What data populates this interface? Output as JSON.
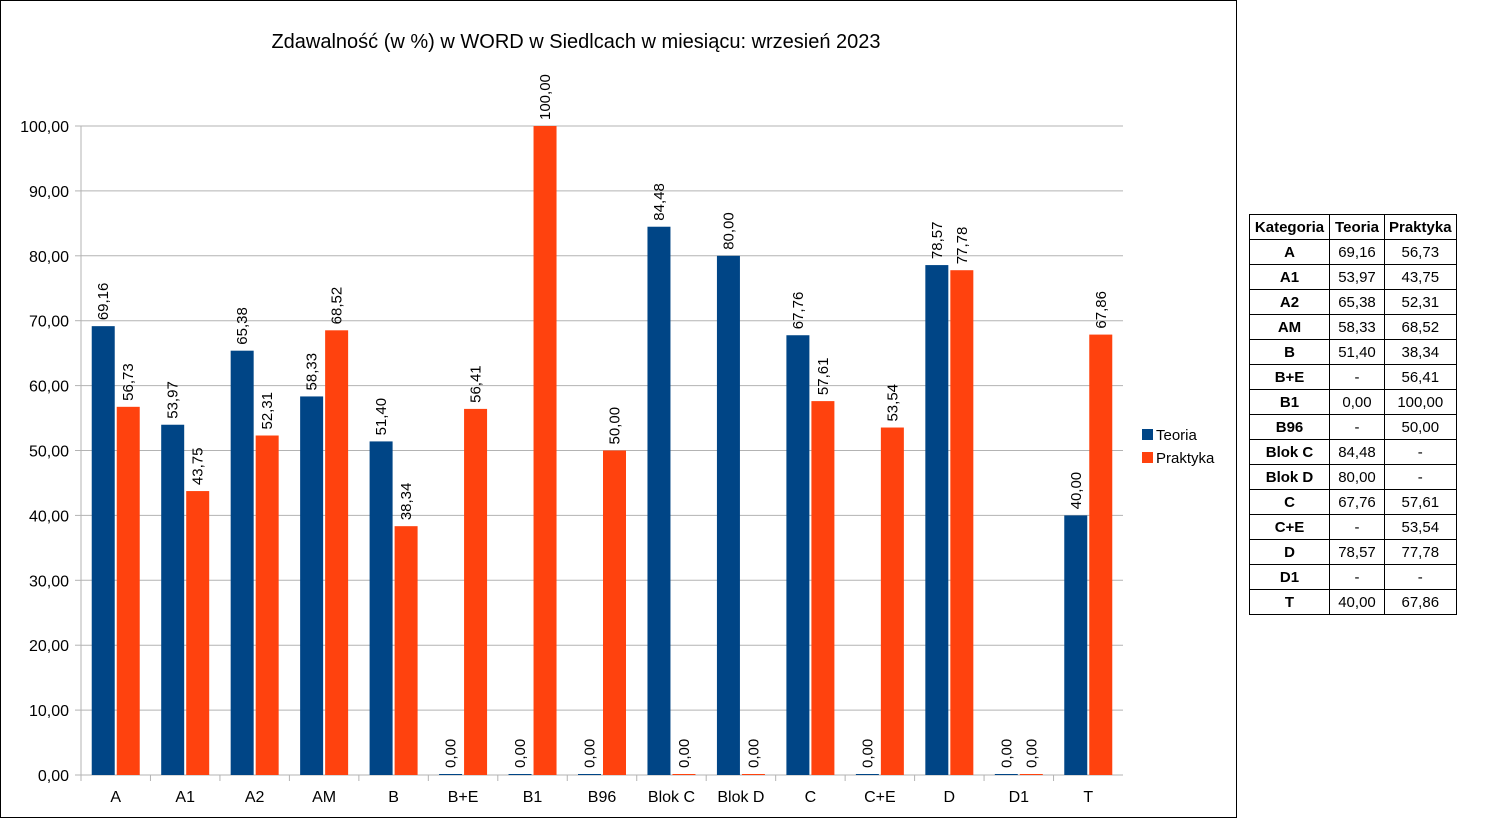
{
  "chart_data": {
    "type": "bar",
    "title": "Zdawalność (w %) w WORD w Siedlcach w miesiącu: wrzesień 2023",
    "categories": [
      "A",
      "A1",
      "A2",
      "AM",
      "B",
      "B+E",
      "B1",
      "B96",
      "Blok C",
      "Blok D",
      "C",
      "C+E",
      "D",
      "D1",
      "T"
    ],
    "series": [
      {
        "name": "Teoria",
        "color": "#004586",
        "values": [
          69.16,
          53.97,
          65.38,
          58.33,
          51.4,
          0.0,
          0.0,
          0.0,
          84.48,
          80.0,
          67.76,
          0.0,
          78.57,
          0.0,
          40.0
        ],
        "labels": [
          "69,16",
          "53,97",
          "65,38",
          "58,33",
          "51,40",
          "0,00",
          "0,00",
          "0,00",
          "84,48",
          "80,00",
          "67,76",
          "0,00",
          "78,57",
          "0,00",
          "40,00"
        ]
      },
      {
        "name": "Praktyka",
        "color": "#ff420e",
        "values": [
          56.73,
          43.75,
          52.31,
          68.52,
          38.34,
          56.41,
          100.0,
          50.0,
          0.0,
          0.0,
          57.61,
          53.54,
          77.78,
          0.0,
          67.86
        ],
        "labels": [
          "56,73",
          "43,75",
          "52,31",
          "68,52",
          "38,34",
          "56,41",
          "100,00",
          "50,00",
          "0,00",
          "0,00",
          "57,61",
          "53,54",
          "77,78",
          "0,00",
          "67,86"
        ]
      }
    ],
    "ylim": [
      0,
      100
    ],
    "yticks": [
      "0,00",
      "10,00",
      "20,00",
      "30,00",
      "40,00",
      "50,00",
      "60,00",
      "70,00",
      "80,00",
      "90,00",
      "100,00"
    ],
    "grid": true,
    "legend": "right",
    "xlabel": "",
    "ylabel": ""
  },
  "table": {
    "headers": [
      "Kategoria",
      "Teoria",
      "Praktyka"
    ],
    "rows": [
      [
        "A",
        "69,16",
        "56,73"
      ],
      [
        "A1",
        "53,97",
        "43,75"
      ],
      [
        "A2",
        "65,38",
        "52,31"
      ],
      [
        "AM",
        "58,33",
        "68,52"
      ],
      [
        "B",
        "51,40",
        "38,34"
      ],
      [
        "B+E",
        "-",
        "56,41"
      ],
      [
        "B1",
        "0,00",
        "100,00"
      ],
      [
        "B96",
        "-",
        "50,00"
      ],
      [
        "Blok C",
        "84,48",
        "-"
      ],
      [
        "Blok D",
        "80,00",
        "-"
      ],
      [
        "C",
        "67,76",
        "57,61"
      ],
      [
        "C+E",
        "-",
        "53,54"
      ],
      [
        "D",
        "78,57",
        "77,78"
      ],
      [
        "D1",
        "-",
        "-"
      ],
      [
        "T",
        "40,00",
        "67,86"
      ]
    ]
  }
}
